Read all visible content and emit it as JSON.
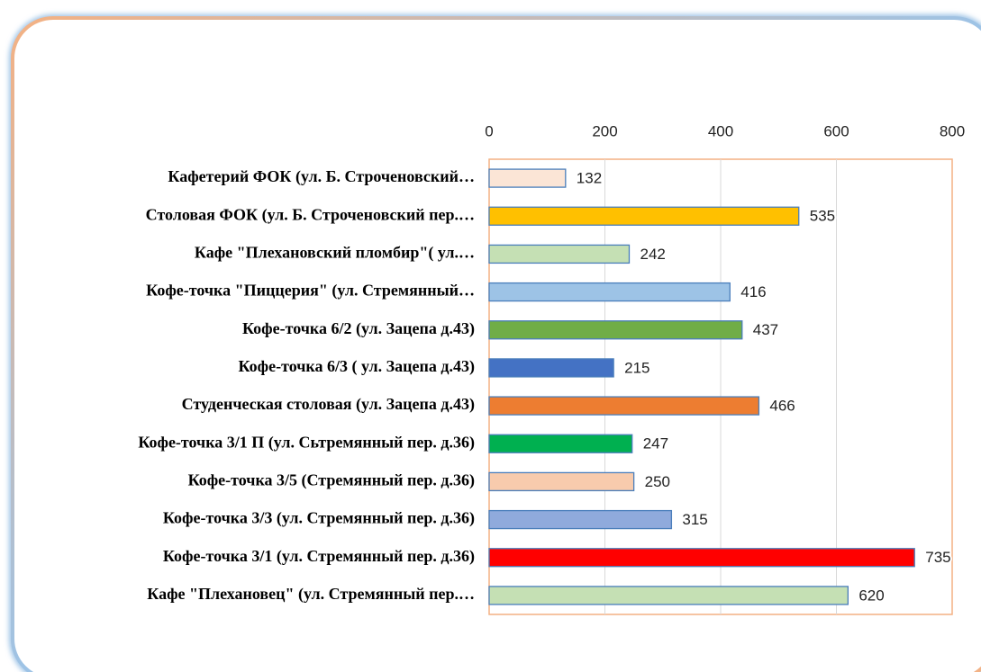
{
  "chart_data": {
    "type": "barh",
    "categories": [
      "Кафетерий ФОК (ул. Б. Строченовский…",
      "Столовая ФОК (ул. Б. Строченовский пер.…",
      "Кафе \"Плехановский пломбир\"( ул.…",
      "Кофе-точка \"Пиццерия\" (ул. Стремянный…",
      "Кофе-точка 6/2 (ул. Зацепа д.43)",
      "Кофе-точка 6/3 ( ул. Зацепа д.43)",
      "Студенческая столовая (ул. Зацепа д.43)",
      "Кофе-точка 3/1 П (ул. Сьтремянный пер. д.36)",
      "Кофе-точка 3/5 (Стремянный пер. д.36)",
      "Кофе-точка 3/3 (ул. Стремянный пер. д.36)",
      "Кофе-точка 3/1 (ул. Стремянный пер. д.36)",
      "Кафе \"Плехановец\" (ул. Стремянный пер.…"
    ],
    "values": [
      132,
      535,
      242,
      416,
      437,
      215,
      466,
      247,
      250,
      315,
      735,
      620
    ],
    "colors": [
      "#fbe5d6",
      "#ffc000",
      "#c5e0b4",
      "#9dc3e6",
      "#70ad47",
      "#4472c4",
      "#ed7d31",
      "#00b050",
      "#f8cbad",
      "#8faadc",
      "#ff0000",
      "#c5e0b4"
    ],
    "xlim": [
      0,
      800
    ],
    "xticks": [
      0,
      200,
      400,
      600,
      800
    ],
    "grid": true
  }
}
